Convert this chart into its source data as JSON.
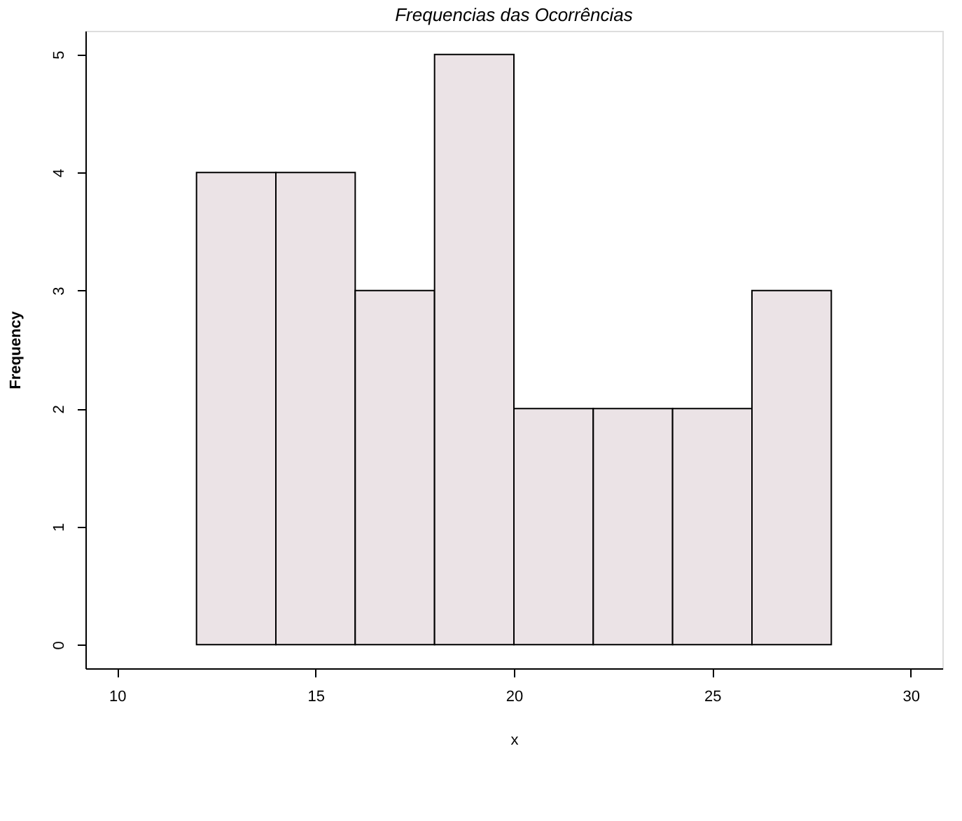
{
  "chart_data": {
    "type": "histogram",
    "title": "Frequencias das Ocorrências",
    "xlabel": "x",
    "ylabel": "Frequency",
    "bins": [
      12,
      14,
      16,
      18,
      20,
      22,
      24,
      26,
      28
    ],
    "values": [
      4,
      4,
      3,
      5,
      2,
      2,
      2,
      3
    ],
    "color": "#ebe3e6",
    "xlim": [
      9.2,
      30.8
    ],
    "xticks": [
      10,
      15,
      20,
      25,
      30
    ],
    "ylim": [
      -0.2,
      5.2
    ],
    "yticks": [
      0,
      1,
      2,
      3,
      4,
      5
    ],
    "grid": false
  }
}
